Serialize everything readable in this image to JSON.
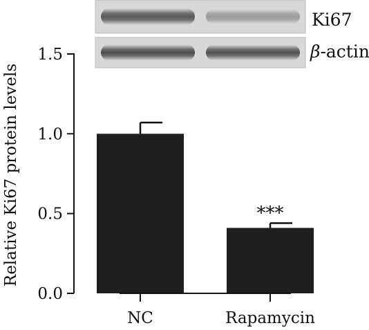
{
  "blot": {
    "lanes": 2,
    "rows": [
      {
        "label": "Ki67",
        "symbol": "",
        "suffix": "Ki67",
        "lane_intensity": [
          0.78,
          0.42
        ]
      },
      {
        "label": "β-actin",
        "symbol": "β",
        "suffix": "-actin",
        "lane_intensity": [
          0.85,
          0.82
        ]
      }
    ]
  },
  "chart_data": {
    "type": "bar",
    "categories": [
      "NC",
      "Rapamycin"
    ],
    "values": [
      1.0,
      0.41
    ],
    "error": [
      0.07,
      0.03
    ],
    "annotations": [
      "",
      "***"
    ],
    "ylabel": "Relative Ki67 protein levels",
    "xlabel": "",
    "ylim": [
      0,
      1.5
    ],
    "yticks": [
      0.0,
      0.5,
      1.0,
      1.5
    ],
    "ytick_labels": [
      "0.0",
      "0.5",
      "1.0",
      "1.5"
    ],
    "grid": false,
    "bar_color": "#1e1e1e"
  }
}
